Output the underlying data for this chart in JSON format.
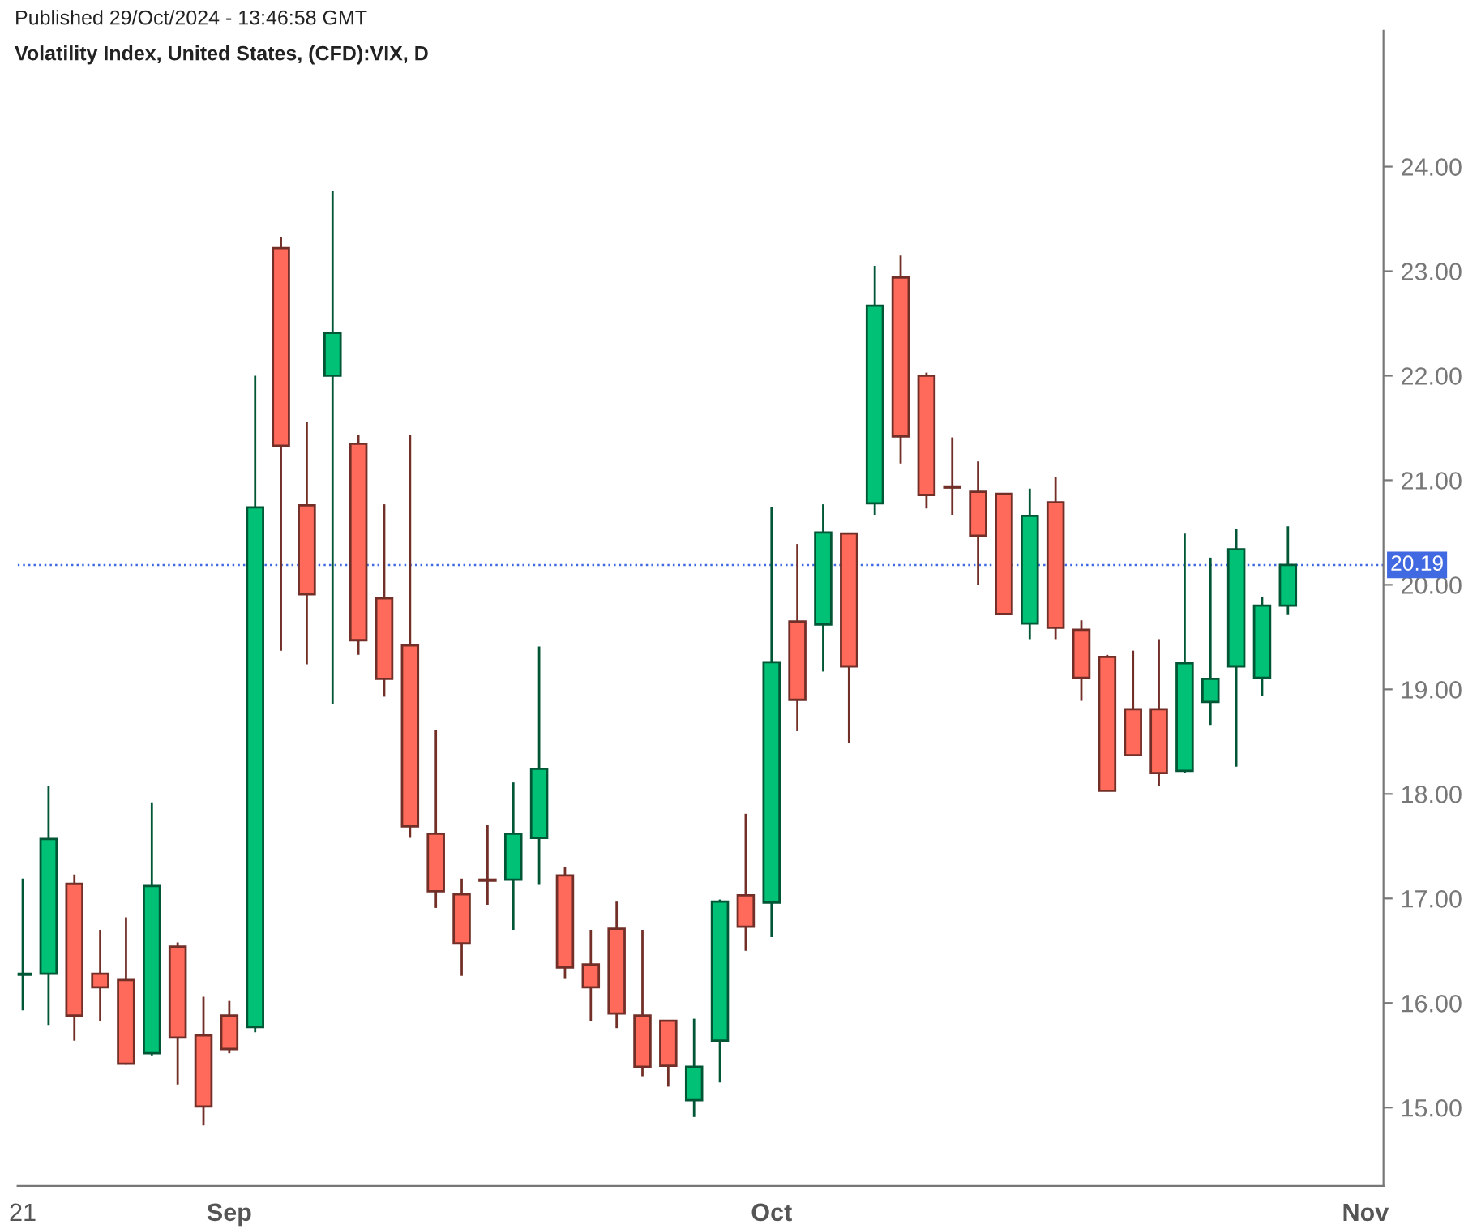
{
  "chart_data": {
    "type": "candlestick",
    "title": "Volatility Index, United States, (CFD):VIX, D",
    "annotations": [
      "Published 29/Oct/2024 - 13:46:58 GMT"
    ],
    "categories": [
      "21",
      null,
      null,
      null,
      null,
      null,
      null,
      null,
      "Sep",
      null,
      null,
      null,
      null,
      null,
      null,
      null,
      null,
      null,
      null,
      null,
      null,
      null,
      null,
      null,
      null,
      null,
      null,
      null,
      null,
      "Oct",
      null,
      null,
      null,
      null,
      null,
      null,
      null,
      null,
      null,
      null,
      null,
      null,
      null,
      null,
      null,
      null,
      null,
      null,
      null,
      null,
      null,
      null,
      "Nov"
    ],
    "ohlc": [
      [
        16.27,
        17.19,
        15.93,
        16.28
      ],
      [
        16.28,
        18.08,
        15.79,
        17.57
      ],
      [
        17.14,
        17.23,
        15.64,
        15.88
      ],
      [
        16.28,
        16.7,
        15.83,
        16.15
      ],
      [
        16.22,
        16.82,
        15.41,
        15.42
      ],
      [
        15.52,
        17.92,
        15.5,
        17.12
      ],
      [
        16.54,
        16.58,
        15.22,
        15.67
      ],
      [
        15.69,
        16.06,
        14.83,
        15.01
      ],
      [
        15.88,
        16.02,
        15.52,
        15.56
      ],
      [
        15.77,
        22.0,
        15.72,
        20.74
      ],
      [
        23.22,
        23.33,
        19.37,
        21.33
      ],
      [
        20.76,
        21.56,
        19.24,
        19.91
      ],
      [
        22.0,
        23.77,
        18.86,
        22.41
      ],
      [
        21.35,
        21.43,
        19.33,
        19.47
      ],
      [
        19.87,
        20.77,
        18.93,
        19.1
      ],
      [
        19.42,
        21.43,
        17.58,
        17.69
      ],
      [
        17.62,
        18.61,
        16.91,
        17.07
      ],
      [
        17.04,
        17.19,
        16.26,
        16.57
      ],
      [
        17.18,
        17.7,
        16.94,
        17.17
      ],
      [
        17.18,
        18.11,
        16.7,
        17.62
      ],
      [
        17.58,
        19.41,
        17.13,
        18.24
      ],
      [
        17.22,
        17.3,
        16.23,
        16.34
      ],
      [
        16.37,
        16.7,
        15.83,
        16.15
      ],
      [
        16.71,
        16.97,
        15.76,
        15.9
      ],
      [
        15.88,
        16.7,
        15.3,
        15.39
      ],
      [
        15.83,
        15.83,
        15.2,
        15.4
      ],
      [
        15.07,
        15.85,
        14.91,
        15.39
      ],
      [
        15.64,
        16.99,
        15.24,
        16.97
      ],
      [
        17.03,
        17.81,
        16.5,
        16.73
      ],
      [
        16.96,
        20.74,
        16.63,
        19.26
      ],
      [
        19.65,
        20.39,
        18.6,
        18.9
      ],
      [
        19.62,
        20.77,
        19.17,
        20.5
      ],
      [
        20.49,
        20.49,
        18.49,
        19.22
      ],
      [
        20.78,
        23.05,
        20.67,
        22.67
      ],
      [
        22.94,
        23.15,
        21.16,
        21.42
      ],
      [
        22.0,
        22.03,
        20.73,
        20.86
      ],
      [
        20.94,
        21.41,
        20.67,
        20.93
      ],
      [
        20.89,
        21.18,
        20.0,
        20.47
      ],
      [
        20.87,
        20.87,
        19.72,
        19.72
      ],
      [
        19.63,
        20.92,
        19.48,
        20.66
      ],
      [
        20.79,
        21.03,
        19.48,
        19.59
      ],
      [
        19.57,
        19.66,
        18.89,
        19.11
      ],
      [
        19.31,
        19.33,
        18.03,
        18.03
      ],
      [
        18.81,
        19.37,
        18.37,
        18.37
      ],
      [
        18.81,
        19.48,
        18.08,
        18.2
      ],
      [
        18.22,
        20.49,
        18.2,
        19.25
      ],
      [
        18.88,
        20.26,
        18.66,
        19.1
      ],
      [
        19.22,
        20.53,
        18.26,
        20.34
      ],
      [
        19.11,
        19.88,
        18.94,
        19.8
      ],
      [
        19.8,
        20.56,
        19.71,
        20.19
      ],
      null,
      null,
      null
    ],
    "colors": [
      "#00c176",
      "#00c176",
      "#ff6a5b",
      "#ff6a5b",
      "#ff6a5b",
      "#00c176",
      "#ff6a5b",
      "#ff6a5b",
      "#ff6a5b",
      "#00c176",
      "#ff6a5b",
      "#ff6a5b",
      "#00c176",
      "#ff6a5b",
      "#ff6a5b",
      "#ff6a5b",
      "#ff6a5b",
      "#ff6a5b",
      "#ff6a5b",
      "#00c176",
      "#00c176",
      "#ff6a5b",
      "#ff6a5b",
      "#ff6a5b",
      "#ff6a5b",
      "#ff6a5b",
      "#00c176",
      "#00c176",
      "#ff6a5b",
      "#00c176",
      "#ff6a5b",
      "#00c176",
      "#ff6a5b",
      "#00c176",
      "#ff6a5b",
      "#ff6a5b",
      "#ff6a5b",
      "#ff6a5b",
      "#ff6a5b",
      "#00c176",
      "#ff6a5b",
      "#ff6a5b",
      "#ff6a5b",
      "#ff6a5b",
      "#ff6a5b",
      "#00c176",
      "#00c176",
      "#00c176",
      "#00c176",
      "#00c176",
      null,
      null,
      null
    ],
    "ylim": [
      14.25,
      25.3
    ],
    "yticks": [
      {
        "value": 15,
        "label": "15.00"
      },
      {
        "value": 16,
        "label": "16.00"
      },
      {
        "value": 17,
        "label": "17.00"
      },
      {
        "value": 18,
        "label": "18.00"
      },
      {
        "value": 19,
        "label": "19.00"
      },
      {
        "value": 20,
        "label": "20.00"
      },
      {
        "value": 21,
        "label": "21.00"
      },
      {
        "value": 22,
        "label": "22.00"
      },
      {
        "value": 23,
        "label": "23.00"
      },
      {
        "value": 24,
        "label": "24.00"
      }
    ],
    "ref_lines": [
      {
        "axis": "y",
        "value": 20.19,
        "label": "20.19",
        "color": "#4169e1",
        "line_style": "dotted"
      }
    ],
    "grid": false,
    "legend": false
  }
}
